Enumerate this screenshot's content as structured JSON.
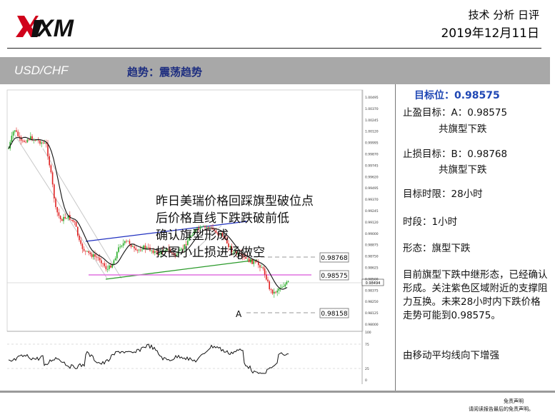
{
  "brand": {
    "logo_text": "XM",
    "accent": "#d0021b"
  },
  "header": {
    "report_type": "技术 分析 日评",
    "date": "2019年12月11日"
  },
  "banner": {
    "symbol": "USD/CHF",
    "trend_label": "趋势：",
    "trend_value": "震荡趋势"
  },
  "chart_note": {
    "lines": [
      "昨日美瑞价格回踩旗型破位点",
      "后价格直线下跌跌破前低",
      "确认旗型形成",
      "按图小止损进场做空"
    ]
  },
  "chart_labels": {
    "price_tags": [
      "0.98768",
      "0.98575",
      "0.98158"
    ],
    "current_price": "0.98494",
    "point_a": "A",
    "point_b": "B",
    "axis_ticks": [
      "1.00495",
      "1.00370",
      "1.00245",
      "1.00120",
      "0.99995",
      "0.99870",
      "0.99745",
      "0.99620",
      "0.99495",
      "0.99370",
      "0.99245",
      "0.99120",
      "0.99000",
      "0.98875",
      "0.98750",
      "0.98625",
      "0.98500",
      "0.98375",
      "0.98250",
      "0.98125",
      "0.98000"
    ],
    "osc_ticks": [
      "100",
      "75",
      "25",
      "0"
    ]
  },
  "sidebar": {
    "target": "目标位：0.98575",
    "tp_label": "止盈目标：A：0.98575",
    "tp_sub": "共旗型下跌",
    "sl_label": "止损目标：B：0.98768",
    "sl_sub": "共旗型下跌",
    "time_limit": "目标时限：28小时",
    "timeframe": "时段：1小时",
    "pattern": "形态：旗型下跌",
    "analysis": "目前旗型下跌中继形态，已经确认形成。关注紫色区域附近的支撑阻力互换。未来28小时内下跌价格走势可能到0.98575。",
    "ma_note": "由移动平均线向下增强"
  },
  "footer": {
    "disclaimer_title": "免责声明",
    "disclaimer_text": "请阅读报告最后的免责声明。"
  },
  "colors": {
    "magenta_line": "#e070e0",
    "blue_channel": "#2030c0",
    "green_channel": "#2a9a2a",
    "ma_line": "#111111",
    "bull": "#22aa22",
    "bear": "#e02020"
  }
}
